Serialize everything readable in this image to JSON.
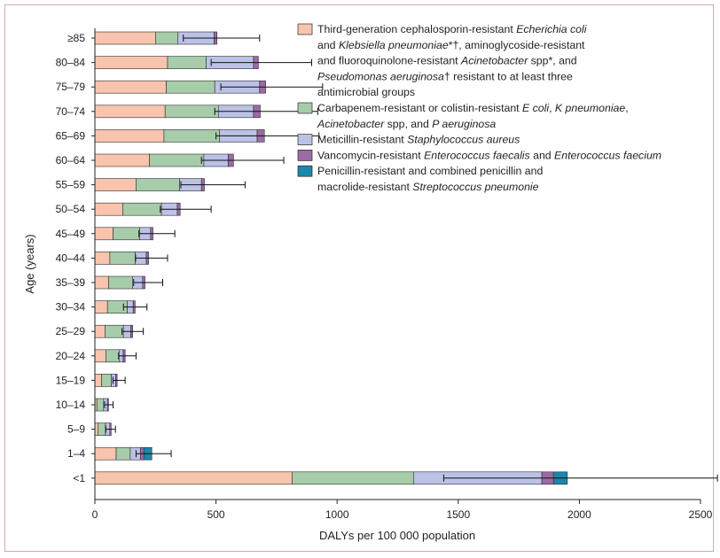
{
  "chart_data": {
    "type": "bar",
    "orientation": "horizontal",
    "stacked": true,
    "xlabel": "DALYs per 100 000 population",
    "ylabel": "Age (years)",
    "xlim": [
      0,
      2500
    ],
    "xticks": [
      "0",
      "500",
      "1000",
      "1500",
      "2000",
      "2500"
    ],
    "grid": false,
    "legend_position": "top-right",
    "categories": [
      "≥85",
      "80–84",
      "75–79",
      "70–74",
      "65–69",
      "60–64",
      "55–59",
      "50–54",
      "45–49",
      "40–44",
      "35–39",
      "30–34",
      "25–29",
      "20–24",
      "15–19",
      "10–14",
      "5–9",
      "1–4",
      "<1"
    ],
    "series": [
      {
        "color": "#f8c4ad",
        "legend_lines": [
          [
            {
              "t": "Third-generation cephalosporin-resistant "
            },
            {
              "t": "Echerichia coli",
              "i": true
            }
          ],
          [
            {
              "t": "and "
            },
            {
              "t": "Klebsiella pneumoniae",
              "i": true
            },
            {
              "t": "*†, aminoglycoside-resistant"
            }
          ],
          [
            {
              "t": "and fluoroquinolone-resistant "
            },
            {
              "t": "Acinetobacter",
              "i": true
            },
            {
              "t": " spp*, and"
            }
          ],
          [
            {
              "t": "Pseudomonas aeruginosa",
              "i": true
            },
            {
              "t": "† resistant to at least three"
            }
          ],
          [
            {
              "t": "antimicrobial groups"
            }
          ]
        ],
        "values": [
          250,
          300,
          295,
          290,
          285,
          225,
          170,
          115,
          75,
          62,
          57,
          52,
          43,
          45,
          28,
          8,
          12,
          88,
          815
        ]
      },
      {
        "color": "#a7ccaa",
        "legend_lines": [
          [
            {
              "t": "Carbapenem-resistant or colistin-resistant "
            },
            {
              "t": "E coli",
              "i": true
            },
            {
              "t": ",  "
            },
            {
              "t": "K pneumoniae",
              "i": true
            },
            {
              "t": ","
            }
          ],
          [
            {
              "t": "Acinetobacter",
              "i": true
            },
            {
              "t": " spp, and "
            },
            {
              "t": "P aeruginosa",
              "i": true
            }
          ]
        ],
        "values": [
          92,
          160,
          200,
          220,
          230,
          225,
          180,
          160,
          110,
          105,
          98,
          82,
          75,
          55,
          40,
          28,
          32,
          58,
          500
        ]
      },
      {
        "color": "#bcc1e6",
        "legend_lines": [
          [
            {
              "t": "Meticillin-resistant "
            },
            {
              "t": "Staphylococcus aureus",
              "i": true
            }
          ]
        ],
        "values": [
          150,
          195,
          185,
          145,
          155,
          100,
          90,
          65,
          45,
          45,
          42,
          24,
          30,
          17,
          18,
          16,
          18,
          42,
          530
        ]
      },
      {
        "color": "#9d6aa6",
        "legend_lines": [
          [
            {
              "t": "Vancomycin-resistant "
            },
            {
              "t": "Enterococcus faecalis",
              "i": true
            },
            {
              "t": " and "
            },
            {
              "t": "Enterococcus  faecium",
              "i": true
            }
          ]
        ],
        "values": [
          12,
          20,
          25,
          28,
          30,
          22,
          12,
          12,
          10,
          10,
          10,
          8,
          8,
          8,
          6,
          4,
          5,
          14,
          48
        ]
      },
      {
        "color": "#1a87ad",
        "legend_lines": [
          [
            {
              "t": "Penicillin-resistant and combined penicillin and"
            }
          ],
          [
            {
              "t": "macrolide-resistant "
            },
            {
              "t": "Streptococcus pneumonie",
              "i": true
            }
          ]
        ],
        "values": [
          0,
          0,
          0,
          0,
          0,
          0,
          0,
          0,
          0,
          0,
          0,
          0,
          0,
          0,
          0,
          0,
          0,
          33,
          57
        ]
      }
    ],
    "error_bars": [
      [
        365,
        680
      ],
      [
        480,
        895
      ],
      [
        520,
        940
      ],
      [
        495,
        920
      ],
      [
        500,
        925
      ],
      [
        440,
        780
      ],
      [
        355,
        620
      ],
      [
        270,
        480
      ],
      [
        182,
        330
      ],
      [
        168,
        300
      ],
      [
        160,
        280
      ],
      [
        118,
        215
      ],
      [
        112,
        200
      ],
      [
        98,
        170
      ],
      [
        75,
        125
      ],
      [
        40,
        75
      ],
      [
        45,
        85
      ],
      [
        170,
        315
      ],
      [
        1440,
        2570
      ]
    ]
  }
}
